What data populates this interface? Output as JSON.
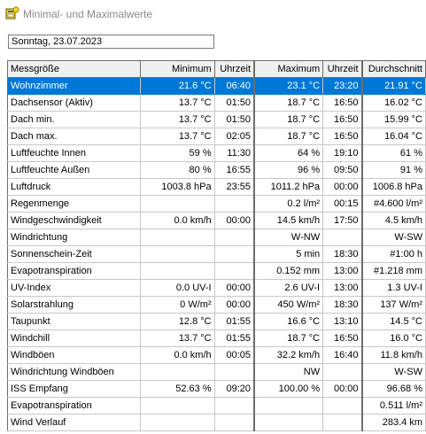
{
  "window": {
    "title": "Minimal- und Maximalwerte"
  },
  "date": {
    "value": "Sonntag, 23.07.2023"
  },
  "columns": [
    "Messgröße",
    "Minimum",
    "Uhrzeit",
    "Maximum",
    "Uhrzeit",
    "Durchschnitt"
  ],
  "selected_row": 0,
  "rows": [
    [
      "Wohnzimmer",
      "21.6 °C",
      "06:40",
      "23.1 °C",
      "23:20",
      "21.91 °C"
    ],
    [
      "Dachsensor (Aktiv)",
      "13.7 °C",
      "01:50",
      "18.7 °C",
      "16:50",
      "16.02 °C"
    ],
    [
      "Dach min.",
      "13.7 °C",
      "01:50",
      "18.7 °C",
      "16:50",
      "15.99 °C"
    ],
    [
      "Dach max.",
      "13.7 °C",
      "02:05",
      "18.7 °C",
      "16:50",
      "16.04 °C"
    ],
    [
      "Luftfeuchte Innen",
      "59 %",
      "11:30",
      "64 %",
      "19:10",
      "61 %"
    ],
    [
      "Luftfeuchte Außen",
      "80 %",
      "16:55",
      "96 %",
      "09:50",
      "91 %"
    ],
    [
      "Luftdruck",
      "1003.8 hPa",
      "23:55",
      "1011.2 hPa",
      "00:00",
      "1006.8 hPa"
    ],
    [
      "Regenmenge",
      "",
      "",
      "0.2 l/m²",
      "00:15",
      "#4.600 l/m²"
    ],
    [
      "Windgeschwindigkeit",
      "0.0 km/h",
      "00:00",
      "14.5 km/h",
      "17:50",
      "4.5 km/h"
    ],
    [
      "Windrichtung",
      "",
      "",
      "W-NW",
      "",
      "W-SW"
    ],
    [
      "Sonnenschein-Zeit",
      "",
      "",
      "5 min",
      "18:30",
      "#1:00 h"
    ],
    [
      "Evapotranspiration",
      "",
      "",
      "0.152 mm",
      "13:00",
      "#1.218 mm"
    ],
    [
      "UV-Index",
      "0.0 UV-I",
      "00:00",
      "2.6 UV-I",
      "13:00",
      "1.3 UV-I"
    ],
    [
      "Solarstrahlung",
      "0 W/m²",
      "00:00",
      "450 W/m²",
      "18:30",
      "137 W/m²"
    ],
    [
      "Taupunkt",
      "12.8 °C",
      "01:55",
      "16.6 °C",
      "13:10",
      "14.5 °C"
    ],
    [
      "Windchill",
      "13.7 °C",
      "01:55",
      "18.7 °C",
      "16:50",
      "16.0 °C"
    ],
    [
      "Windböen",
      "0.0 km/h",
      "00:05",
      "32.2 km/h",
      "16:40",
      "11.8 km/h"
    ],
    [
      "Windrichtung Windböen",
      "",
      "",
      "NW",
      "",
      "W-SW"
    ],
    [
      "ISS Empfang",
      "52.63 %",
      "09:20",
      "100.00 %",
      "00:00",
      "96.68 %"
    ],
    [
      "Evapotranspiration",
      "",
      "",
      "",
      "",
      "0.511 l/m²"
    ],
    [
      "Wind Verlauf",
      "",
      "",
      "",
      "",
      "283.4 km"
    ]
  ]
}
